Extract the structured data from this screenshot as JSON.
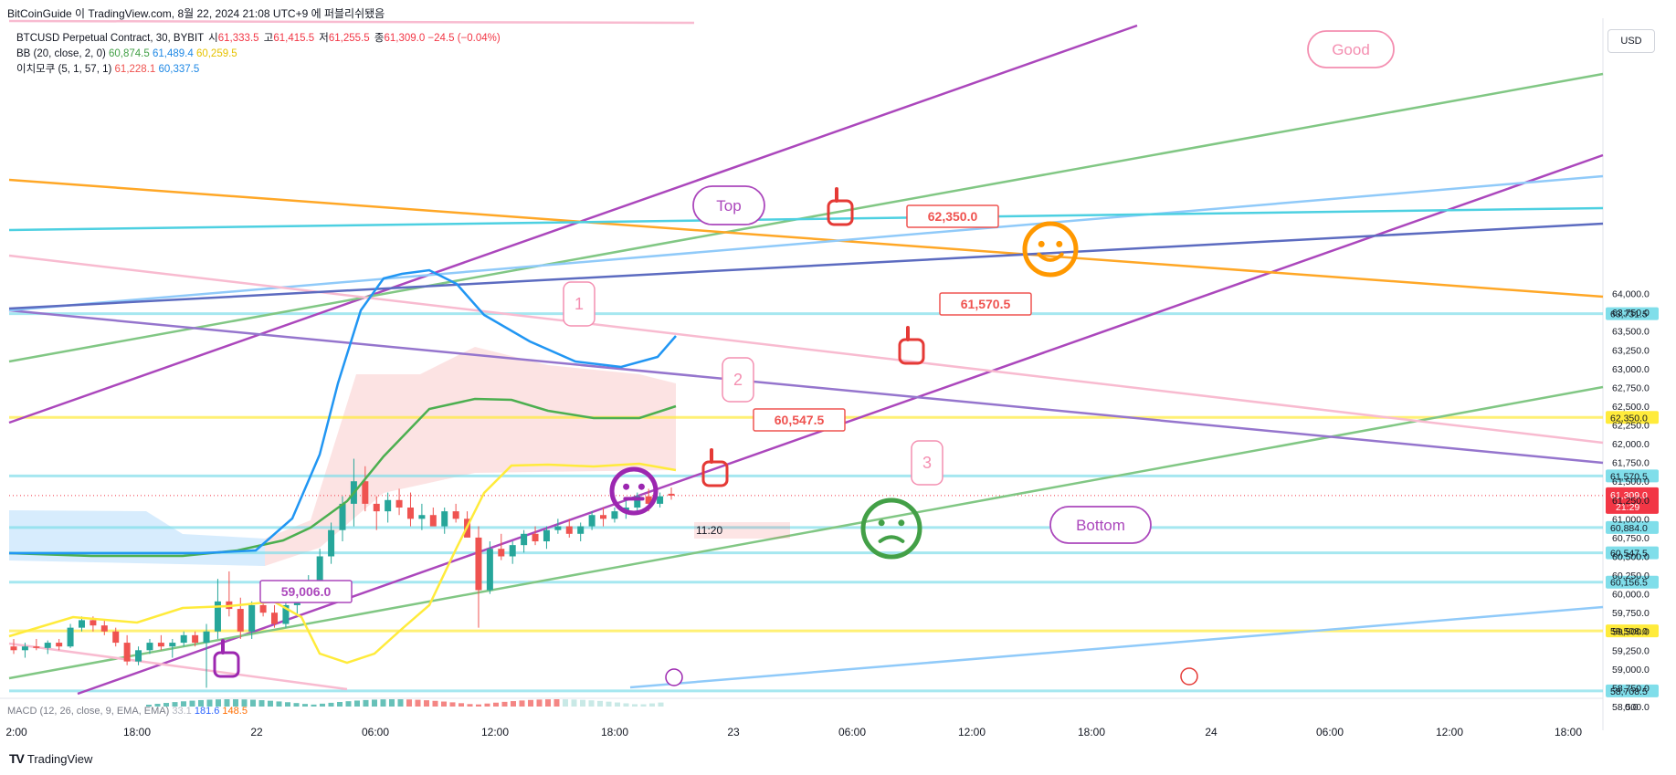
{
  "header": {
    "source_line": "BitCoinGuide 이 TradingView.com, 8월 22, 2024 21:08 UTC+9 에 퍼블리쉬됐음"
  },
  "legend": {
    "symbol_line": "BTCUSD Perpetual Contract, 30, BYBIT",
    "ohlc": {
      "open_label": "시",
      "open": "61,333.5",
      "high_label": "고",
      "high": "61,415.5",
      "low_label": "저",
      "low": "61,255.5",
      "close_label": "종",
      "close": "61,309.0",
      "change": "−24.5 (−0.04%)"
    },
    "bb": {
      "label": "BB (20, close, 2, 0)",
      "basis": "60,874.5",
      "upper": "61,489.4",
      "lower": "60,259.5"
    },
    "ichimoku": {
      "label": "이치모쿠 (5, 1, 57, 1)",
      "v1": "61,228.1",
      "v2": "60,337.5"
    },
    "macd": {
      "label": "MACD (12, 26, close, 9, EMA, EMA)",
      "v1": "33.1",
      "v2": "181.6",
      "v3": "148.5"
    }
  },
  "currency_button": "USD",
  "footer": {
    "brand": "TradingView",
    "logo_mark": "TV"
  },
  "colors": {
    "up": "#26a69a",
    "down": "#ef5350",
    "bb_basis": "#4caf50",
    "bb_upper": "#2196f3",
    "bb_lower": "#ffeb3b",
    "purple": "#ab47bc",
    "orange": "#ffa726",
    "cyan": "#80deea",
    "price_tag": "#f23645"
  },
  "chart_data": {
    "type": "candlestick",
    "y_axis": {
      "ticks": [
        "58,500.0",
        "58,750.0",
        "59,000.0",
        "59,250.0",
        "59,500.0",
        "59,750.0",
        "60,000.0",
        "60,250.0",
        "60,500.0",
        "60,750.0",
        "61,000.0",
        "61,250.0",
        "61,500.0",
        "61,750.0",
        "62,000.0",
        "62,250.0",
        "62,500.0",
        "62,750.0",
        "63,000.0",
        "63,250.0",
        "63,500.0",
        "63,750.0",
        "64,000.0"
      ],
      "range": [
        58400,
        64100
      ]
    },
    "x_axis": {
      "ticks": [
        "2:00",
        "18:00",
        "22",
        "06:00",
        "12:00",
        "18:00",
        "23",
        "06:00",
        "12:00",
        "18:00",
        "24",
        "06:00",
        "12:00",
        "18:00"
      ]
    },
    "horizontal_levels": [
      {
        "price": 63731.5,
        "label": "63,731.5",
        "color": "#80deea"
      },
      {
        "price": 62350.0,
        "label": "62,350.0",
        "color": "#ffeb3b"
      },
      {
        "price": 61570.5,
        "label": "61,570.5",
        "color": "#80deea"
      },
      {
        "price": 60884.0,
        "label": "60,884.0",
        "color": "#80deea"
      },
      {
        "price": 60547.5,
        "label": "60,547.5",
        "color": "#80deea"
      },
      {
        "price": 60156.5,
        "label": "60,156.5",
        "color": "#80deea"
      },
      {
        "price": 59508.0,
        "label": "59,508.0",
        "color": "#ffeb3b"
      },
      {
        "price": 58708.5,
        "label": "58,708.5",
        "color": "#80deea"
      }
    ],
    "current_price": {
      "label": "61,309.0",
      "countdown": "21:29"
    },
    "price_labels": [
      "62,350.0",
      "61,570.5",
      "60,547.5",
      "59,006.0"
    ],
    "annotations": [
      "Top",
      "Good",
      "Bottom",
      "1",
      "2",
      "3"
    ],
    "time_marker": "11:20",
    "macd_axis_label": "0.0",
    "candles": [
      [
        59300,
        59400,
        59200,
        59250
      ],
      [
        59250,
        59350,
        59150,
        59300
      ],
      [
        59300,
        59400,
        59250,
        59280
      ],
      [
        59280,
        59380,
        59200,
        59350
      ],
      [
        59350,
        59400,
        59250,
        59300
      ],
      [
        59300,
        59600,
        59280,
        59550
      ],
      [
        59550,
        59700,
        59500,
        59650
      ],
      [
        59650,
        59700,
        59500,
        59580
      ],
      [
        59580,
        59650,
        59450,
        59500
      ],
      [
        59500,
        59550,
        59300,
        59350
      ],
      [
        59350,
        59450,
        59050,
        59100
      ],
      [
        59100,
        59300,
        59050,
        59250
      ],
      [
        59250,
        59400,
        59200,
        59350
      ],
      [
        59350,
        59450,
        59250,
        59300
      ],
      [
        59300,
        59400,
        59150,
        59350
      ],
      [
        59350,
        59500,
        59300,
        59450
      ],
      [
        59450,
        59500,
        59300,
        59350
      ],
      [
        59350,
        59600,
        58750,
        59500
      ],
      [
        59500,
        60200,
        59400,
        59900
      ],
      [
        59900,
        60300,
        59700,
        59800
      ],
      [
        59800,
        59950,
        59400,
        59500
      ],
      [
        59500,
        59900,
        59400,
        59850
      ],
      [
        59850,
        59950,
        59700,
        59750
      ],
      [
        59750,
        59850,
        59550,
        59600
      ],
      [
        59600,
        59900,
        59550,
        59850
      ],
      [
        59850,
        60000,
        59700,
        59950
      ],
      [
        59950,
        60250,
        59900,
        60150
      ],
      [
        60150,
        60600,
        60050,
        60500
      ],
      [
        60500,
        60950,
        60400,
        60850
      ],
      [
        60850,
        61300,
        60700,
        61200
      ],
      [
        61200,
        61800,
        60900,
        61500
      ],
      [
        61500,
        61700,
        61100,
        61200
      ],
      [
        61200,
        61300,
        60850,
        61100
      ],
      [
        61100,
        61350,
        60950,
        61250
      ],
      [
        61250,
        61400,
        61050,
        61150
      ],
      [
        61150,
        61350,
        60900,
        61000
      ],
      [
        61000,
        61200,
        60850,
        61050
      ],
      [
        61050,
        61150,
        60950,
        60900
      ],
      [
        60900,
        61150,
        60800,
        61100
      ],
      [
        61100,
        61200,
        60950,
        61000
      ],
      [
        61000,
        61100,
        60800,
        60750
      ],
      [
        60750,
        60900,
        59550,
        60050
      ],
      [
        60050,
        60700,
        60000,
        60600
      ],
      [
        60600,
        60800,
        60450,
        60500
      ],
      [
        60500,
        60700,
        60400,
        60650
      ],
      [
        60650,
        60850,
        60550,
        60800
      ],
      [
        60800,
        60900,
        60650,
        60700
      ],
      [
        60700,
        60900,
        60600,
        60850
      ],
      [
        60850,
        61000,
        60800,
        60900
      ],
      [
        60900,
        61000,
        60750,
        60800
      ],
      [
        60800,
        60950,
        60700,
        60900
      ],
      [
        60900,
        61100,
        60850,
        61050
      ],
      [
        61050,
        61150,
        60900,
        61000
      ],
      [
        61000,
        61150,
        60950,
        61100
      ],
      [
        61100,
        61250,
        61000,
        61150
      ],
      [
        61150,
        61350,
        61100,
        61300
      ],
      [
        61300,
        61400,
        61100,
        61200
      ],
      [
        61200,
        61350,
        61150,
        61300
      ],
      [
        61333.5,
        61415.5,
        61255.5,
        61309
      ]
    ]
  }
}
